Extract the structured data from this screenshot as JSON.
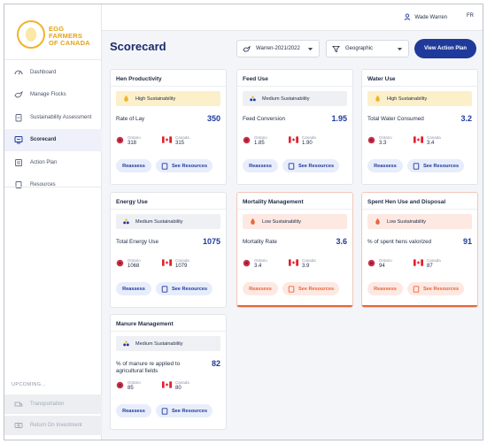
{
  "brand": {
    "name_line1": "EGG FARMERS",
    "name_line2": "OF CANADA"
  },
  "sidebar": {
    "items": [
      {
        "label": "Dashboard",
        "icon": "gauge-icon"
      },
      {
        "label": "Manage Flocks",
        "icon": "bird-icon"
      },
      {
        "label": "Sustainability Assessment",
        "icon": "clipboard-icon"
      },
      {
        "label": "Scorecard",
        "icon": "scorecard-icon",
        "active": true
      },
      {
        "label": "Action Plan",
        "icon": "list-icon"
      },
      {
        "label": "Resources",
        "icon": "book-icon"
      }
    ],
    "upcoming_label": "UPCOMING...",
    "upcoming": [
      {
        "label": "Transportation",
        "icon": "truck-icon"
      },
      {
        "label": "Return On Investment",
        "icon": "money-icon"
      }
    ]
  },
  "header": {
    "user": "Wade Warren",
    "lang": "FR"
  },
  "page": {
    "title": "Scorecard",
    "flock_select": "Warren-2021/2022",
    "filter_select": "Geographic",
    "action_button": "View Action Plan"
  },
  "labels": {
    "ontario": "Ontario",
    "canada": "Canada",
    "reassess": "Reassess",
    "resources": "See Resources"
  },
  "colors": {
    "high": "#fbf0c9",
    "medium": "#eef0f4",
    "low": "#fde8e2",
    "blue": "#1f3a9b",
    "orange": "#e8653a"
  },
  "cards": [
    {
      "title": "Hen Productivity",
      "level": "High Sustainability",
      "level_key": "high",
      "metric": "Rate of Lay",
      "value": "350",
      "ontario": "318",
      "canada": "315"
    },
    {
      "title": "Feed Use",
      "level": "Medium Sustainability",
      "level_key": "medium",
      "metric": "Feed Conversion",
      "value": "1.95",
      "ontario": "1.85",
      "canada": "1.90"
    },
    {
      "title": "Water Use",
      "level": "High Sustainability",
      "level_key": "high",
      "metric": "Total Water Consumed",
      "value": "3.2",
      "ontario": "3.3",
      "canada": "3.4"
    },
    {
      "title": "Energy Use",
      "level": "Medium Sustainability",
      "level_key": "medium",
      "metric": "Total Energy Use",
      "value": "1075",
      "ontario": "1068",
      "canada": "1079"
    },
    {
      "title": "Mortality Management",
      "level": "Low Sustainability",
      "level_key": "low",
      "metric": "Mortality Rate",
      "value": "3.6",
      "ontario": "3.4",
      "canada": "3.9"
    },
    {
      "title": "Spent Hen Use and Disposal",
      "level": "Low Sustainability",
      "level_key": "low",
      "metric": "% of spent hens valorized",
      "value": "91",
      "ontario": "94",
      "canada": "87"
    },
    {
      "title": "Manure Management",
      "level": "Medium Sustainability",
      "level_key": "medium",
      "metric": "% of manure re applied to agricultural fields",
      "value": "82",
      "ontario": "85",
      "canada": "80"
    }
  ]
}
